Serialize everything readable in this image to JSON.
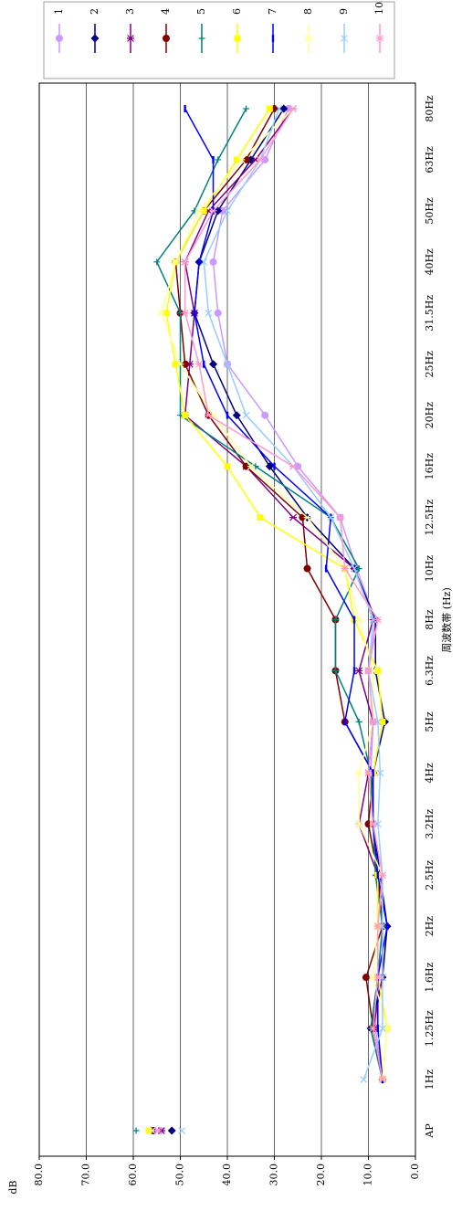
{
  "chart_data": {
    "type": "line",
    "x_label": "周波数帯 (Hz)",
    "y_label": "dB",
    "categories": [
      "AP",
      "1Hz",
      "1.25Hz",
      "1.6Hz",
      "2Hz",
      "2.5Hz",
      "3.2Hz",
      "4Hz",
      "5Hz",
      "6.3Hz",
      "8Hz",
      "10Hz",
      "12.5Hz",
      "16Hz",
      "20Hz",
      "25Hz",
      "31.5Hz",
      "40Hz",
      "50Hz",
      "63Hz",
      "80Hz"
    ],
    "isolated_categories": [
      0
    ],
    "ylim": [
      0,
      80
    ],
    "yticks": [
      {
        "value": 0,
        "label": "0.0"
      },
      {
        "value": 10,
        "label": "10.0"
      },
      {
        "value": 20,
        "label": "20.0"
      },
      {
        "value": 30,
        "label": "30.0"
      },
      {
        "value": 40,
        "label": "40.0"
      },
      {
        "value": 50,
        "label": "50.0"
      },
      {
        "value": 60,
        "label": "60.0"
      },
      {
        "value": 70,
        "label": "70.0"
      },
      {
        "value": 80,
        "label": "80.0"
      }
    ],
    "grid": true,
    "legend": "right",
    "series": [
      {
        "name": "1",
        "color": "#cc99ff",
        "marker": "circle",
        "values": [
          54.2,
          7,
          8.5,
          8,
          7,
          8,
          9,
          9.5,
          9,
          10,
          8.5,
          12.5,
          16,
          25,
          32,
          40,
          42,
          43,
          41,
          32,
          27
        ]
      },
      {
        "name": "2",
        "color": "#000080",
        "marker": "diamond",
        "values": [
          51.8,
          7,
          9.5,
          7,
          6,
          7.5,
          9,
          9,
          6.5,
          8.5,
          8.5,
          13,
          23,
          31,
          38,
          43,
          47,
          46,
          42,
          35,
          28
        ]
      },
      {
        "name": "3",
        "color": "#800080",
        "marker": "asterisk",
        "values": [
          54,
          7,
          9,
          7,
          7,
          8,
          12,
          10,
          9,
          12,
          9,
          13,
          26,
          36,
          49,
          48,
          47,
          49,
          44,
          34,
          26
        ]
      },
      {
        "name": "4",
        "color": "#800000",
        "marker": "circle",
        "values": [
          56,
          7,
          9,
          10.5,
          7,
          8,
          10,
          9,
          15,
          17,
          17,
          23,
          24,
          36,
          44,
          49,
          50,
          51,
          45,
          36,
          30
        ]
      },
      {
        "name": "5",
        "color": "#008080",
        "marker": "plus",
        "values": [
          59.4,
          7,
          9.5,
          8,
          7,
          8.5,
          9,
          9.5,
          12,
          17,
          17,
          12,
          18,
          34,
          50,
          50,
          50,
          55,
          47,
          42,
          36
        ]
      },
      {
        "name": "6",
        "color": "#ffff00",
        "marker": "square",
        "values": [
          56.7,
          7,
          6,
          8,
          8,
          8,
          9,
          9,
          7,
          8,
          13,
          15,
          33,
          40,
          49,
          51,
          53,
          51,
          45,
          38,
          31
        ]
      },
      {
        "name": "7",
        "color": "#0000ff",
        "marker": "dash",
        "values": [
          55.5,
          7,
          8,
          8,
          6,
          8,
          9,
          9,
          15,
          13,
          13,
          19,
          18,
          30,
          40,
          45,
          47,
          46,
          43,
          43,
          49
        ]
      },
      {
        "name": "8",
        "color": "#ffff99",
        "marker": "asterisk",
        "values": [
          56,
          7,
          6,
          9,
          8,
          7,
          12,
          12,
          9,
          9,
          12,
          15,
          23,
          35,
          43,
          50,
          54,
          51,
          46,
          37,
          26
        ]
      },
      {
        "name": "9",
        "color": "#99ccff",
        "marker": "x",
        "values": [
          49.7,
          11,
          7,
          7,
          7,
          7,
          8,
          7.5,
          8,
          10,
          9,
          13,
          18,
          26,
          36,
          40,
          44,
          45,
          40,
          33,
          29
        ]
      },
      {
        "name": "10",
        "color": "#ff99cc",
        "marker": "asterisk",
        "values": [
          54.8,
          7,
          9,
          8,
          8,
          7,
          9,
          10,
          9,
          10,
          8,
          15,
          16,
          26,
          44,
          46,
          49,
          49,
          43,
          33,
          26
        ]
      }
    ]
  }
}
